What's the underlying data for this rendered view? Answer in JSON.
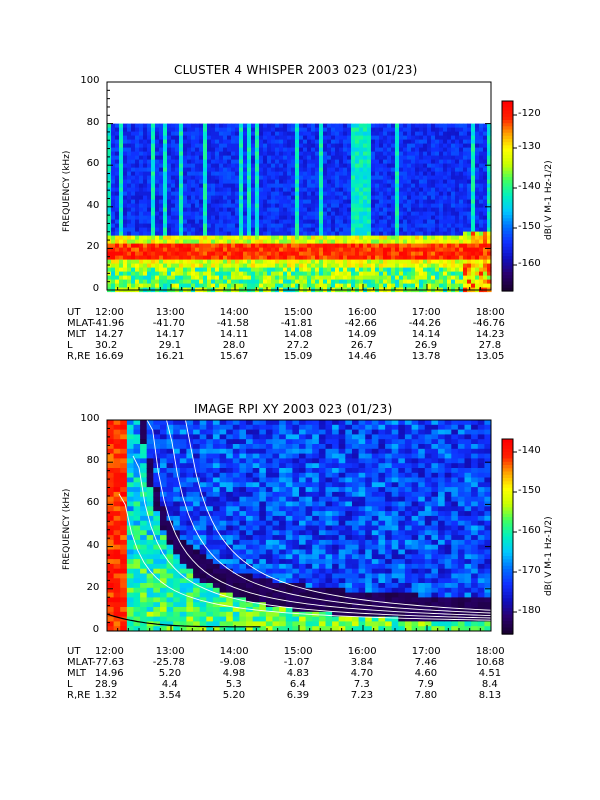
{
  "chart_data": [
    {
      "type": "heatmap",
      "title": "CLUSTER 4 WHISPER 2003 023 (01/23)",
      "ylabel": "FREQUENCY (kHz)",
      "colorbar_label": "dB( V M⁻¹ Hz⁻¹ᐟ²)",
      "colorbar_label_plain": "dB( V M-1 Hz-1/2)",
      "colorbar_ticks": [
        "-120",
        "-130",
        "-140",
        "-150",
        "-160"
      ],
      "colorbar_range": [
        -167,
        -118
      ],
      "yticks": [
        "0",
        "20",
        "40",
        "60",
        "80",
        "100"
      ],
      "ylim": [
        0,
        100
      ],
      "data_top": 80,
      "xticks": [
        "12:00",
        "13:00",
        "14:00",
        "15:00",
        "16:00",
        "17:00",
        "18:00"
      ],
      "band": {
        "center_kHz": 20,
        "level_dB": -120
      },
      "ephemeris": {
        "UT": [
          "12:00",
          "13:00",
          "14:00",
          "15:00",
          "16:00",
          "17:00",
          "18:00"
        ],
        "MLAT": [
          "-41.96",
          "-41.70",
          "-41.58",
          "-41.81",
          "-42.66",
          "-44.26",
          "-46.76"
        ],
        "MLT": [
          "14.27",
          "14.17",
          "14.11",
          "14.08",
          "14.09",
          "14.14",
          "14.23"
        ],
        "L": [
          "30.2",
          "29.1",
          "28.0",
          "27.2",
          "26.7",
          "26.9",
          "27.8"
        ],
        "R,RE": [
          "16.69",
          "16.21",
          "15.67",
          "15.09",
          "14.46",
          "13.78",
          "13.05"
        ]
      }
    },
    {
      "type": "heatmap",
      "title": "IMAGE RPI XY 2003 023 (01/23)",
      "ylabel": "FREQUENCY (kHz)",
      "colorbar_label": "dB( V M⁻¹ Hz⁻¹ᐟ²)",
      "colorbar_label_plain": "dB( V M-1 Hz-1/2)",
      "colorbar_ticks": [
        "-140",
        "-150",
        "-160",
        "-170",
        "-180"
      ],
      "colorbar_range": [
        -186,
        -136
      ],
      "yticks": [
        "0",
        "20",
        "40",
        "60",
        "80",
        "100"
      ],
      "ylim": [
        0,
        100
      ],
      "xticks": [
        "12:00",
        "13:00",
        "14:00",
        "15:00",
        "16:00",
        "17:00",
        "18:00"
      ],
      "ephemeris": {
        "UT": [
          "12:00",
          "13:00",
          "14:00",
          "15:00",
          "16:00",
          "17:00",
          "18:00"
        ],
        "MLAT": [
          "-77.63",
          "-25.78",
          "-9.08",
          "-1.07",
          "3.84",
          "7.46",
          "10.68"
        ],
        "MLT": [
          "14.96",
          "5.20",
          "4.98",
          "4.83",
          "4.70",
          "4.60",
          "4.51"
        ],
        "L": [
          "28.9",
          "4.4",
          "5.3",
          "6.4",
          "7.3",
          "7.9",
          "8.4"
        ],
        "R,RE": [
          "1.32",
          "3.54",
          "5.20",
          "6.39",
          "7.23",
          "7.80",
          "8.13"
        ]
      }
    }
  ],
  "colors": {
    "colormap": [
      "#1a0033",
      "#2a0070",
      "#1010c0",
      "#1030ff",
      "#0070ff",
      "#00c8ff",
      "#00f0c0",
      "#40ff60",
      "#c8ff00",
      "#ffff00",
      "#ffa000",
      "#ff2000",
      "#ff0000"
    ]
  }
}
